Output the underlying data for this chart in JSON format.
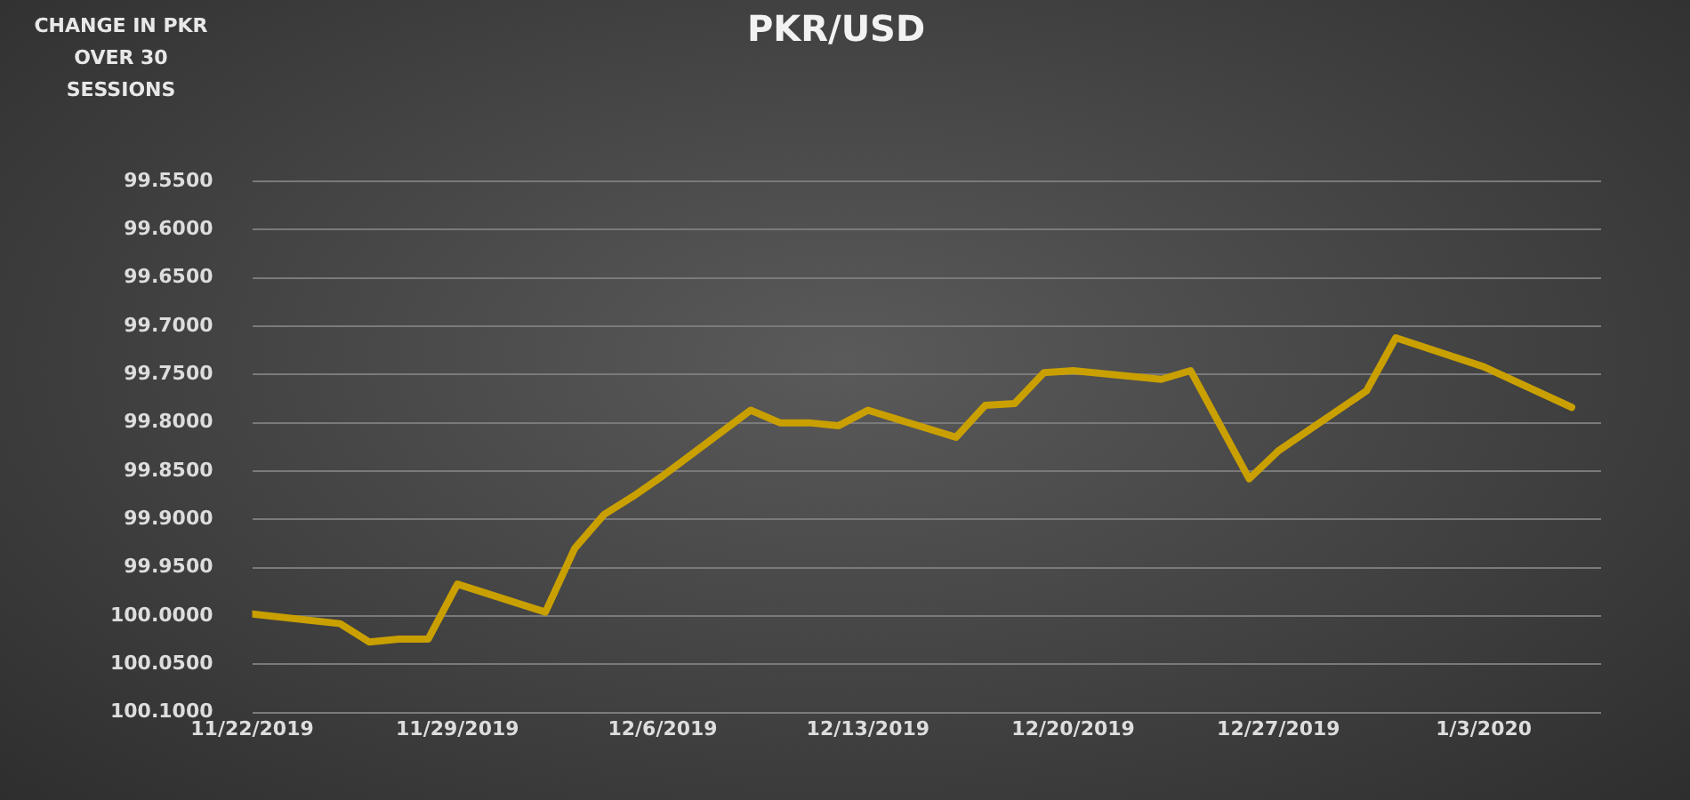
{
  "chart_data": {
    "type": "line",
    "title": "PKR/USD",
    "ylabel": "CHANGE IN PKR OVER 30 SESSIONS",
    "x": [
      "2019-11-22",
      "2019-11-25",
      "2019-11-26",
      "2019-11-27",
      "2019-11-28",
      "2019-11-29",
      "2019-12-02",
      "2019-12-03",
      "2019-12-04",
      "2019-12-05",
      "2019-12-06",
      "2019-12-09",
      "2019-12-10",
      "2019-12-11",
      "2019-12-12",
      "2019-12-13",
      "2019-12-16",
      "2019-12-17",
      "2019-12-18",
      "2019-12-19",
      "2019-12-20",
      "2019-12-23",
      "2019-12-24",
      "2019-12-26",
      "2019-12-27",
      "2019-12-30",
      "2019-12-31",
      "2020-01-03",
      "2020-01-06"
    ],
    "series": [
      {
        "color": "#c9a000",
        "values": [
          99.998,
          100.008,
          100.027,
          100.024,
          100.024,
          99.967,
          99.996,
          99.93,
          99.895,
          99.876,
          99.855,
          99.787,
          99.8,
          99.8,
          99.803,
          99.787,
          99.815,
          99.782,
          99.78,
          99.748,
          99.746,
          99.755,
          99.746,
          99.858,
          99.829,
          99.767,
          99.712,
          99.742,
          99.784
        ]
      }
    ],
    "ylim": [
      100.1,
      99.55
    ],
    "yticks": [
      {
        "value": 99.55,
        "label": "99.5500"
      },
      {
        "value": 99.6,
        "label": "99.6000"
      },
      {
        "value": 99.65,
        "label": "99.6500"
      },
      {
        "value": 99.7,
        "label": "99.7000"
      },
      {
        "value": 99.75,
        "label": "99.7500"
      },
      {
        "value": 99.8,
        "label": "99.8000"
      },
      {
        "value": 99.85,
        "label": "99.8500"
      },
      {
        "value": 99.9,
        "label": "99.9000"
      },
      {
        "value": 99.95,
        "label": "99.9500"
      },
      {
        "value": 100,
        "label": "100.0000"
      },
      {
        "value": 100.05,
        "label": "100.0500"
      },
      {
        "value": 100.1,
        "label": "100.1000"
      }
    ],
    "xlim": [
      "2019-11-22",
      "2020-01-07"
    ],
    "xticks": [
      {
        "value": "2019-11-22",
        "label": "11/22/2019"
      },
      {
        "value": "2019-11-29",
        "label": "11/29/2019"
      },
      {
        "value": "2019-12-06",
        "label": "12/6/2019"
      },
      {
        "value": "2019-12-13",
        "label": "12/13/2019"
      },
      {
        "value": "2019-12-20",
        "label": "12/20/2019"
      },
      {
        "value": "2019-12-27",
        "label": "12/27/2019"
      },
      {
        "value": "2020-01-03",
        "label": "1/3/2020"
      }
    ],
    "grid": "y",
    "legend": false,
    "marker": "none",
    "line_style": "solid"
  }
}
